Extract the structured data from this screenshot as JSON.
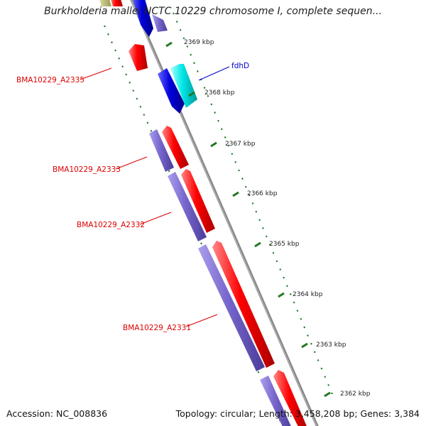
{
  "title": "Burkholderia mallei NCTC 10229 chromosome I, complete sequen...",
  "footer": {
    "accession": "Accession: NC_008836",
    "summary": "Topology: circular; Length: 3,458,208 bp; Genes: 3,384"
  },
  "colors": {
    "forward_gene": "#ee0000",
    "reverse_gene": "#7766cc",
    "highlight_forward": "#00e0e0",
    "highlight_reverse": "#0000dd",
    "backbone": "#888888",
    "tick": "#227722",
    "label_line_red": "#dd0000",
    "label_line_blue": "#0000cc"
  },
  "ticks": [
    {
      "label": "2369 kbp"
    },
    {
      "label": "2368 kbp"
    },
    {
      "label": "2367 kbp"
    },
    {
      "label": "2366 kbp"
    },
    {
      "label": "2365 kbp"
    },
    {
      "label": "2364 kbp"
    },
    {
      "label": "2363 kbp"
    },
    {
      "label": "2362 kbp"
    }
  ],
  "gene_labels": [
    {
      "name": "fdhD",
      "color": "#0000cc"
    },
    {
      "name": "BMA10229_A2335",
      "color": "#dd0000"
    },
    {
      "name": "BMA10229_A2333",
      "color": "#dd0000"
    },
    {
      "name": "BMA10229_A2332",
      "color": "#dd0000"
    },
    {
      "name": "BMA10229_A2331",
      "color": "#dd0000"
    }
  ]
}
